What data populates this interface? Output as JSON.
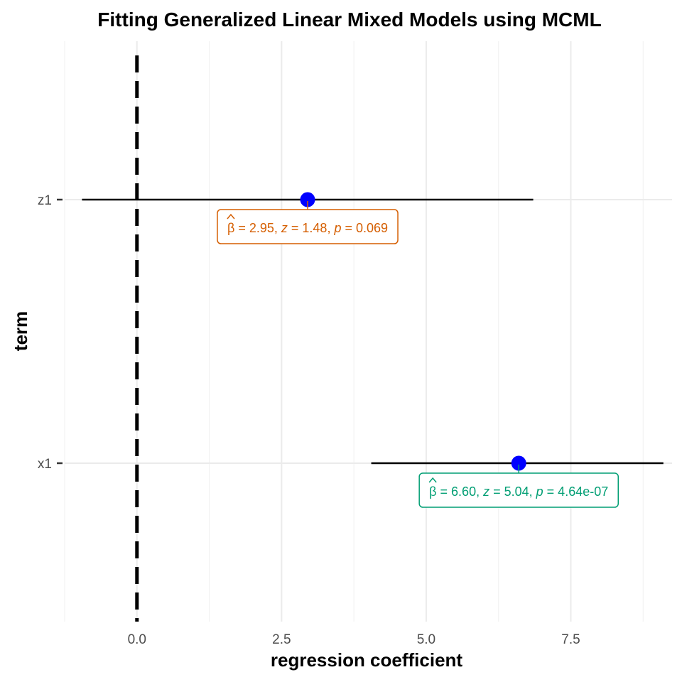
{
  "chart_data": {
    "type": "scatter",
    "title": "Fitting Generalized Linear Mixed Models using MCML",
    "xlabel": "regression coefficient",
    "ylabel": "term",
    "xlim": [
      -1.25,
      9.25
    ],
    "x_ticks": [
      0,
      2.5,
      5,
      7.5
    ],
    "x_tick_labels": [
      "0.0",
      "2.5",
      "5.0",
      "7.5"
    ],
    "reference_line_x": 0,
    "grid": true,
    "point_color": "#0000ff",
    "terms": [
      {
        "term": "z1",
        "estimate": 2.95,
        "conf_low": -0.95,
        "conf_high": 6.85,
        "color": "#d55e00",
        "label": {
          "beta": "2.95",
          "z": "1.48",
          "p": "0.069"
        }
      },
      {
        "term": "x1",
        "estimate": 6.6,
        "conf_low": 4.05,
        "conf_high": 9.1,
        "color": "#009e73",
        "label": {
          "beta": "6.60",
          "z": "5.04",
          "p": "4.64e-07"
        }
      }
    ]
  }
}
